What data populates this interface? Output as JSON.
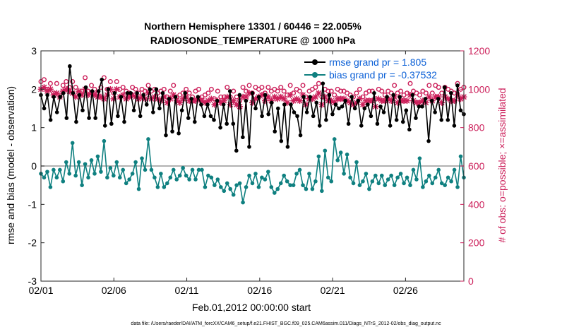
{
  "chart_data": {
    "type": "line",
    "title_line1": "Northern Hemisphere 13301 / 60446 = 22.005%",
    "title_line2": "RADIOSONDE_TEMPERATURE @ 1000 hPa",
    "xlabel": "Feb.01,2012 00:00:00 start",
    "ylabel_left": "rmse and bias (model - observation)",
    "ylabel_right": "# of obs: o=possible; ×=assimilated",
    "footer": "data file: /Users/raeder/DAI/ATM_forcXX/CAM6_setup/f.e21.FHIST_BGC.f09_025.CAM6assim.011/Diags_NTrS_2012-02/obs_diag_output.nc",
    "x_ticks": [
      "02/01",
      "02/06",
      "02/11",
      "02/16",
      "02/21",
      "02/26"
    ],
    "x_tick_days": [
      0,
      5,
      10,
      15,
      20,
      25
    ],
    "x_range": [
      0,
      29
    ],
    "ylim_left": [
      -3,
      3
    ],
    "yticks_left": [
      "-3",
      "-2",
      "-1",
      "0",
      "1",
      "2",
      "3"
    ],
    "ylim_right": [
      0,
      1200
    ],
    "yticks_right": [
      "0",
      "200",
      "400",
      "600",
      "800",
      "1000",
      "1200"
    ],
    "legend": [
      {
        "label": "rmse grand pr = 1.805",
        "color": "#000000"
      },
      {
        "label": "bias grand pr = -0.37532",
        "color": "#0f8080"
      }
    ],
    "colors": {
      "rmse": "#000000",
      "bias": "#0f8080",
      "counts": "#cc1f5a",
      "zero": "#999999"
    },
    "series": [
      {
        "name": "rmse",
        "values": [
          1.85,
          1.5,
          1.85,
          1.2,
          1.8,
          1.4,
          1.8,
          1.9,
          1.25,
          2.6,
          1.9,
          1.15,
          1.85,
          1.45,
          2.05,
          1.25,
          1.95,
          1.25,
          1.95,
          2.25,
          1.05,
          2.0,
          1.1,
          1.9,
          1.3,
          1.8,
          1.15,
          1.9,
          1.9,
          1.45,
          1.9,
          1.3,
          1.85,
          1.6,
          2.0,
          1.4,
          2.0,
          1.5,
          1.9,
          0.8,
          1.75,
          0.9,
          1.8,
          0.85,
          1.45,
          1.9,
          1.25,
          1.75,
          1.15,
          1.8,
          1.6,
          1.3,
          1.6,
          1.3,
          1.2,
          1.7,
          1.0,
          1.6,
          1.1,
          1.95,
          1.1,
          0.4,
          1.85,
          0.75,
          1.7,
          0.5,
          1.9,
          1.5,
          1.8,
          1.3,
          1.85,
          1.35,
          1.65,
          0.9,
          1.5,
          0.65,
          1.6,
          0.5,
          1.6,
          1.4,
          1.3,
          0.8,
          1.8,
          1.4,
          1.8,
          1.3,
          1.65,
          1.05,
          2.15,
          1.2,
          1.85,
          1.35,
          1.6,
          1.5,
          1.55,
          1.7,
          1.1,
          1.8,
          1.5,
          1.7,
          1.05,
          1.5,
          1.6,
          1.3,
          1.9,
          1.1,
          1.55,
          1.4,
          1.8,
          1.05,
          1.85,
          1.2,
          1.8,
          1.15,
          1.45,
          0.95,
          1.85,
          1.25,
          1.55,
          1.55,
          1.75,
          0.65,
          1.7,
          1.4,
          1.75,
          1.2,
          2.05,
          1.2,
          1.9,
          1.05,
          2.1,
          1.45,
          1.35
        ]
      },
      {
        "name": "bias",
        "values": [
          -0.2,
          -0.3,
          -0.15,
          -0.55,
          -0.1,
          -0.3,
          -0.1,
          -0.4,
          0.1,
          -0.2,
          0.6,
          -0.25,
          0.1,
          -0.5,
          0.05,
          -0.3,
          0.15,
          -0.2,
          0.25,
          -0.15,
          0.65,
          -0.3,
          -0.05,
          -0.25,
          0.1,
          -0.3,
          -0.1,
          -0.45,
          -0.35,
          -0.2,
          0.1,
          -0.6,
          0.2,
          -0.1,
          0.7,
          -0.1,
          -0.3,
          -0.55,
          -0.2,
          -0.55,
          -0.45,
          -0.3,
          -0.1,
          -0.35,
          -0.25,
          -0.05,
          -0.25,
          -0.35,
          -0.1,
          -0.35,
          -0.1,
          -0.1,
          -0.55,
          -0.25,
          -0.3,
          -0.5,
          -0.35,
          -0.55,
          -0.65,
          -0.45,
          -0.6,
          -0.75,
          -0.5,
          -0.45,
          -0.95,
          -0.55,
          -0.25,
          -0.45,
          -0.2,
          -0.55,
          -0.3,
          -0.35,
          -0.15,
          -0.55,
          -0.7,
          -0.6,
          -0.45,
          -0.25,
          -0.4,
          -0.5,
          -0.5,
          -0.2,
          -0.1,
          -0.5,
          -0.6,
          -0.2,
          -0.6,
          -0.4,
          0.25,
          -0.65,
          0.4,
          -0.3,
          -0.4,
          0.7,
          0.15,
          0.35,
          -0.2,
          0.3,
          -0.3,
          -0.45,
          0.1,
          -0.5,
          -0.4,
          -0.2,
          -0.6,
          -0.4,
          -0.25,
          -0.45,
          -0.25,
          -0.5,
          -0.35,
          -0.25,
          -0.5,
          -0.3,
          -0.2,
          -0.45,
          -0.3,
          -0.5,
          -0.1,
          -0.35,
          0.2,
          -0.55,
          -0.4,
          -0.25,
          -0.45,
          -0.3,
          -0.1,
          -0.45,
          -0.5,
          -0.3,
          -0.4,
          -0.1,
          -0.55,
          0.25,
          -0.3
        ]
      },
      {
        "name": "possible",
        "values": [
          1040,
          1050,
          1000,
          1030,
          980,
          1030,
          970,
          1020,
          1040,
          1010,
          1040,
          1010,
          980,
          990,
          1060,
          990,
          1020,
          1000,
          980,
          1010,
          1060,
          1000,
          1040,
          980,
          1040,
          1000,
          1010,
          990,
          980,
          1010,
          1000,
          980,
          1000,
          990,
          1020,
          990,
          1000,
          980,
          990,
          1000,
          960,
          990,
          1020,
          960,
          970,
          980,
          1000,
          980,
          960,
          990,
          1000,
          960,
          970,
          980,
          1000,
          950,
          990,
          960,
          960,
          1010,
          960,
          990,
          960,
          940,
          1010,
          990,
          1020,
          980,
          1010,
          1000,
          1010,
          980,
          1010,
          990,
          1000,
          990,
          1010,
          990,
          970,
          1020,
          980,
          1000,
          990,
          1020,
          960,
          990,
          1000,
          1010,
          1030,
          960,
          1000,
          990,
          990,
          970,
          1000,
          990,
          990,
          980,
          970,
          960,
          980,
          1000,
          960,
          980,
          990,
          990,
          950,
          1000,
          990,
          970,
          990,
          980,
          1020,
          980,
          990,
          970,
          980,
          1030,
          990,
          980,
          970,
          990,
          980,
          1020,
          980,
          1020,
          1010,
          980,
          1010,
          1000,
          990,
          980,
          1030,
          1000,
          1010
        ]
      },
      {
        "name": "assimilated",
        "values": [
          1000,
          1010,
          990,
          1000,
          970,
          980,
          960,
          990,
          1000,
          990,
          980,
          960,
          990,
          970,
          1000,
          970,
          980,
          970,
          960,
          960,
          950,
          970,
          1000,
          950,
          1000,
          960,
          970,
          950,
          960,
          970,
          960,
          950,
          960,
          950,
          980,
          950,
          960,
          950,
          940,
          960,
          930,
          950,
          970,
          940,
          930,
          950,
          960,
          940,
          940,
          940,
          950,
          940,
          930,
          940,
          950,
          920,
          940,
          930,
          940,
          960,
          920,
          940,
          920,
          910,
          960,
          960,
          980,
          930,
          950,
          960,
          970,
          940,
          960,
          940,
          960,
          950,
          960,
          950,
          930,
          970,
          940,
          950,
          940,
          970,
          920,
          950,
          950,
          960,
          980,
          920,
          960,
          940,
          940,
          930,
          950,
          950,
          950,
          940,
          930,
          920,
          930,
          950,
          920,
          940,
          940,
          940,
          910,
          950,
          940,
          940,
          950,
          940,
          960,
          930,
          940,
          940,
          940,
          970,
          940,
          930,
          930,
          940,
          930,
          960,
          940,
          960,
          960,
          930,
          960,
          950,
          940,
          940,
          970,
          950,
          960
        ]
      }
    ]
  }
}
